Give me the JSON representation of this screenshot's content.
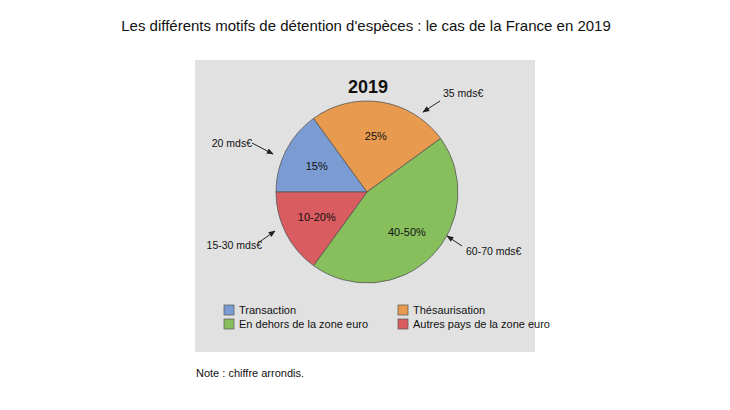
{
  "chart_data": {
    "type": "pie",
    "title": "Les différents motifs de détention d'espèces : le cas de la France en 2019",
    "subtitle": "2019",
    "categories": [
      "Transaction",
      "Thésaurisation",
      "En dehors de la zone euro",
      "Autres pays de la zone euro"
    ],
    "values": [
      15,
      25,
      45,
      15
    ],
    "value_labels": [
      "15%",
      "25%",
      "40-50%",
      "10-20%"
    ],
    "annotations": [
      "20 mds€",
      "35 mds€",
      "60-70 mds€",
      "15-30 mds€"
    ],
    "colors": [
      "#7b9bd3",
      "#e89a4f",
      "#88bf5d",
      "#d95c60"
    ],
    "data_labels": true,
    "legend": "bottom",
    "note": "Note : chiffre arrondis."
  }
}
